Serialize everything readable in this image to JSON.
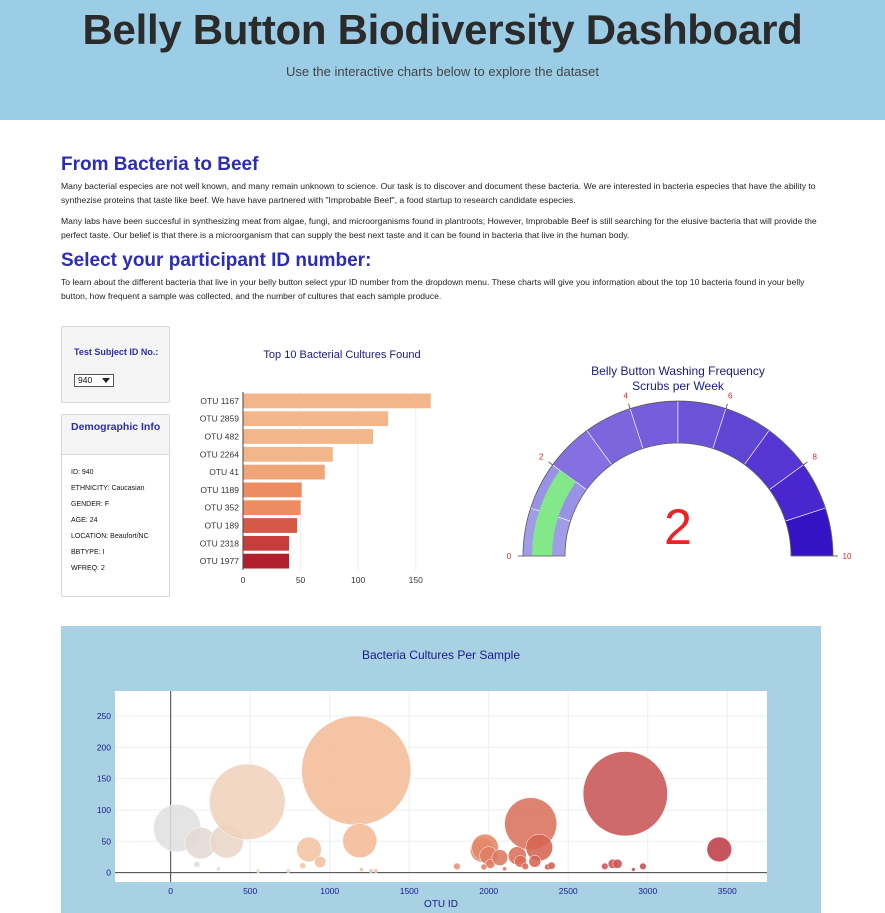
{
  "header": {
    "title": "Belly Button Biodiversity Dashboard",
    "subtitle": "Use the interactive charts below to explore the dataset"
  },
  "intro": {
    "heading": "From Bacteria to Beef",
    "paragraph1": "Many bacterial especies are not well known, and many remain unknown to science. Our task is to discover and document these bacteria. We are interested in bacteria especies that have the ability to synthezise proteins that taste like beef. We have have partnered with \"Improbable Beef\", a food startup to research candidate especies.",
    "paragraph2": "Many labs have been succesful in synthesizing meat from algae, fungi, and microorganisms found in plantroots; However, Improbable Beef is still searching for the elusive bacteria that will provide the perfect taste. Our belief is that there is a microorganism that can supply the best next taste and it can be found in bacteria that live in the human body.",
    "select_heading": "Select your participant ID number:",
    "paragraph3": "To learn about the different bacteria that live in your belly button select ypur ID number from the dropdown menu. These charts will give you information about the top 10 bacteria found in your belly button, how frequent a sample was collected, and the number of cultures that each sample produce."
  },
  "selector": {
    "label": "Test Subject ID No.:",
    "selected": "940"
  },
  "demographics": {
    "title": "Demographic Info",
    "rows": [
      "ID: 940",
      "ETHNICITY: Caucasian",
      "GENDER: F",
      "AGE: 24",
      "LOCATION: Beaufort/NC",
      "BBTYPE: I",
      "WFREQ: 2"
    ]
  },
  "chart_data": [
    {
      "type": "bar",
      "orientation": "horizontal",
      "title": "Top 10 Bacterial Cultures Found",
      "categories": [
        "OTU 1167",
        "OTU 2859",
        "OTU 482",
        "OTU 2264",
        "OTU 41",
        "OTU 1189",
        "OTU 352",
        "OTU 189",
        "OTU 2318",
        "OTU 1977"
      ],
      "values": [
        163,
        126,
        113,
        78,
        71,
        51,
        50,
        47,
        40,
        40
      ],
      "colors": [
        "#f2b68a",
        "#f2b68a",
        "#f2b68a",
        "#f2b68a",
        "#f0a578",
        "#ec8c60",
        "#ec8c60",
        "#d45a47",
        "#c93c3c",
        "#b21f2d"
      ],
      "xlim": [
        0,
        165
      ],
      "xticks": [
        0,
        50,
        100,
        150
      ],
      "xtick_labels": [
        "0",
        "50",
        "100",
        "150"
      ]
    },
    {
      "type": "gauge",
      "title": "Belly Button Washing Frequency",
      "subtitle": "Scrubs per Week",
      "value": 2,
      "range": [
        0,
        10
      ],
      "ticks": [
        0,
        2,
        4,
        6,
        8,
        10
      ],
      "tick_labels": [
        "0",
        "2",
        "4",
        "6",
        "8",
        "10"
      ],
      "steps": [
        {
          "range": [
            0,
            1
          ],
          "color": "#a09ce8"
        },
        {
          "range": [
            1,
            2
          ],
          "color": "#9a92e6"
        },
        {
          "range": [
            2,
            3
          ],
          "color": "#8470e0"
        },
        {
          "range": [
            3,
            4
          ],
          "color": "#7c66de"
        },
        {
          "range": [
            4,
            5
          ],
          "color": "#755ddb"
        },
        {
          "range": [
            5,
            6
          ],
          "color": "#6b53d8"
        },
        {
          "range": [
            6,
            7
          ],
          "color": "#5f45d4"
        },
        {
          "range": [
            7,
            8
          ],
          "color": "#5536d2"
        },
        {
          "range": [
            8,
            9
          ],
          "color": "#4a26ce"
        },
        {
          "range": [
            9,
            10
          ],
          "color": "#3413c4"
        }
      ],
      "bar_color": "#82e889",
      "number_color": "#ee2222",
      "tick_color": "#ee2222",
      "title_color": "#1a1a8a"
    },
    {
      "type": "scatter",
      "title": "Bacteria Cultures Per Sample",
      "xlabel": "OTU ID",
      "xlim": [
        -350,
        3750
      ],
      "ylim": [
        -15,
        290
      ],
      "xticks": [
        0,
        500,
        1000,
        1500,
        2000,
        2500,
        3000,
        3500
      ],
      "xtick_labels": [
        "0",
        "500",
        "1000",
        "1500",
        "2000",
        "2500",
        "3000",
        "3500"
      ],
      "yticks": [
        0,
        50,
        100,
        150,
        200,
        250
      ],
      "ytick_labels": [
        "0",
        "50",
        "100",
        "150",
        "200",
        "250"
      ],
      "grid": true,
      "points": [
        {
          "x": 41,
          "y": 71,
          "size": 71,
          "color": "#e0e0e0"
        },
        {
          "x": 189,
          "y": 47,
          "size": 47,
          "color": "#e4dad4"
        },
        {
          "x": 352,
          "y": 50,
          "size": 50,
          "color": "#ead6c8"
        },
        {
          "x": 482,
          "y": 113,
          "size": 113,
          "color": "#f0d2bc"
        },
        {
          "x": 165,
          "y": 13,
          "size": 9,
          "color": "#e2ddd9"
        },
        {
          "x": 300,
          "y": 6,
          "size": 6,
          "color": "#e6ddd6"
        },
        {
          "x": 550,
          "y": 3,
          "size": 3,
          "color": "#ebd9ca"
        },
        {
          "x": 740,
          "y": 3,
          "size": 3,
          "color": "#efd4c0"
        },
        {
          "x": 870,
          "y": 37,
          "size": 37,
          "color": "#f3c4a2"
        },
        {
          "x": 940,
          "y": 17,
          "size": 17,
          "color": "#f3c0a0"
        },
        {
          "x": 830,
          "y": 11,
          "size": 9,
          "color": "#f3c6a6"
        },
        {
          "x": 1167,
          "y": 163,
          "size": 163,
          "color": "#f4bc98"
        },
        {
          "x": 1189,
          "y": 51,
          "size": 51,
          "color": "#f4bb96"
        },
        {
          "x": 1200,
          "y": 5,
          "size": 5,
          "color": "#f3bd99"
        },
        {
          "x": 1260,
          "y": 3,
          "size": 3,
          "color": "#f2ba96"
        },
        {
          "x": 1290,
          "y": 3,
          "size": 3,
          "color": "#f2b895"
        },
        {
          "x": 1800,
          "y": 10,
          "size": 10,
          "color": "#e6927a"
        },
        {
          "x": 1960,
          "y": 36,
          "size": 36,
          "color": "#e48668"
        },
        {
          "x": 1977,
          "y": 40,
          "size": 40,
          "color": "#e48866"
        },
        {
          "x": 2000,
          "y": 27,
          "size": 27,
          "color": "#df7d63"
        },
        {
          "x": 2010,
          "y": 14,
          "size": 14,
          "color": "#de7c62"
        },
        {
          "x": 1970,
          "y": 9,
          "size": 9,
          "color": "#df8064"
        },
        {
          "x": 2070,
          "y": 24,
          "size": 24,
          "color": "#dc7a60"
        },
        {
          "x": 2100,
          "y": 6,
          "size": 6,
          "color": "#dc7860"
        },
        {
          "x": 2180,
          "y": 27,
          "size": 27,
          "color": "#d96e58"
        },
        {
          "x": 2200,
          "y": 18,
          "size": 18,
          "color": "#d96c57"
        },
        {
          "x": 2230,
          "y": 10,
          "size": 10,
          "color": "#d86a56"
        },
        {
          "x": 2264,
          "y": 78,
          "size": 78,
          "color": "#d8725c"
        },
        {
          "x": 2318,
          "y": 40,
          "size": 40,
          "color": "#d66451"
        },
        {
          "x": 2290,
          "y": 18,
          "size": 18,
          "color": "#d56553"
        },
        {
          "x": 2370,
          "y": 9,
          "size": 9,
          "color": "#d45f50"
        },
        {
          "x": 2395,
          "y": 11,
          "size": 11,
          "color": "#d45e50"
        },
        {
          "x": 2730,
          "y": 10,
          "size": 10,
          "color": "#cd5454"
        },
        {
          "x": 2780,
          "y": 14,
          "size": 14,
          "color": "#cc5354"
        },
        {
          "x": 2810,
          "y": 14,
          "size": 14,
          "color": "#cb5254"
        },
        {
          "x": 2859,
          "y": 126,
          "size": 126,
          "color": "#ca5454"
        },
        {
          "x": 2910,
          "y": 5,
          "size": 5,
          "color": "#ca4f53"
        },
        {
          "x": 2970,
          "y": 10,
          "size": 10,
          "color": "#c94d52"
        },
        {
          "x": 3450,
          "y": 37,
          "size": 37,
          "color": "#bf3d48"
        }
      ]
    }
  ]
}
